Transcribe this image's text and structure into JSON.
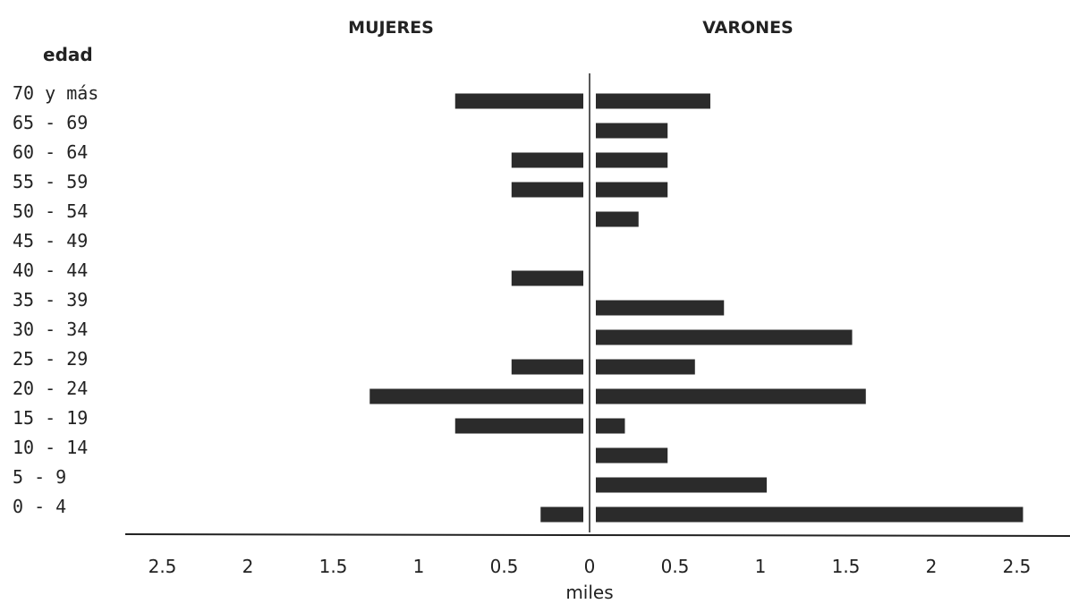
{
  "chart_data": {
    "type": "bar",
    "orientation": "horizontal",
    "layout": "population-pyramid",
    "titles": {
      "left": "MUJERES",
      "right": "VARONES"
    },
    "ylabel": "edad",
    "xlabel": "miles",
    "categories": [
      "0 - 4",
      "5 - 9",
      "10 - 14",
      "15 - 19",
      "20 - 24",
      "25 - 29",
      "30 - 34",
      "35 - 39",
      "40 - 44",
      "45 - 49",
      "50 - 54",
      "55 - 59",
      "60 - 64",
      "65 - 69",
      "70 y más"
    ],
    "series": [
      {
        "name": "MUJERES",
        "side": "left",
        "values": [
          0.25,
          0,
          0,
          0.75,
          1.25,
          0.42,
          0,
          0,
          0.42,
          0,
          0,
          0.42,
          0.42,
          0,
          0.75
        ]
      },
      {
        "name": "VARONES",
        "side": "right",
        "values": [
          2.5,
          1.0,
          0.42,
          0.17,
          1.58,
          0.58,
          1.5,
          0.75,
          0,
          0,
          0.25,
          0.42,
          0.42,
          0.42,
          0.67
        ]
      }
    ],
    "xticks_left": [
      "2.5",
      "2",
      "1.5",
      "1",
      "0.5",
      "0"
    ],
    "xticks_right": [
      "0.5",
      "1",
      "1.5",
      "2",
      "2.5"
    ],
    "xlim": [
      0,
      2.5
    ],
    "bar_color": "#2b2b2b",
    "grid": false
  }
}
